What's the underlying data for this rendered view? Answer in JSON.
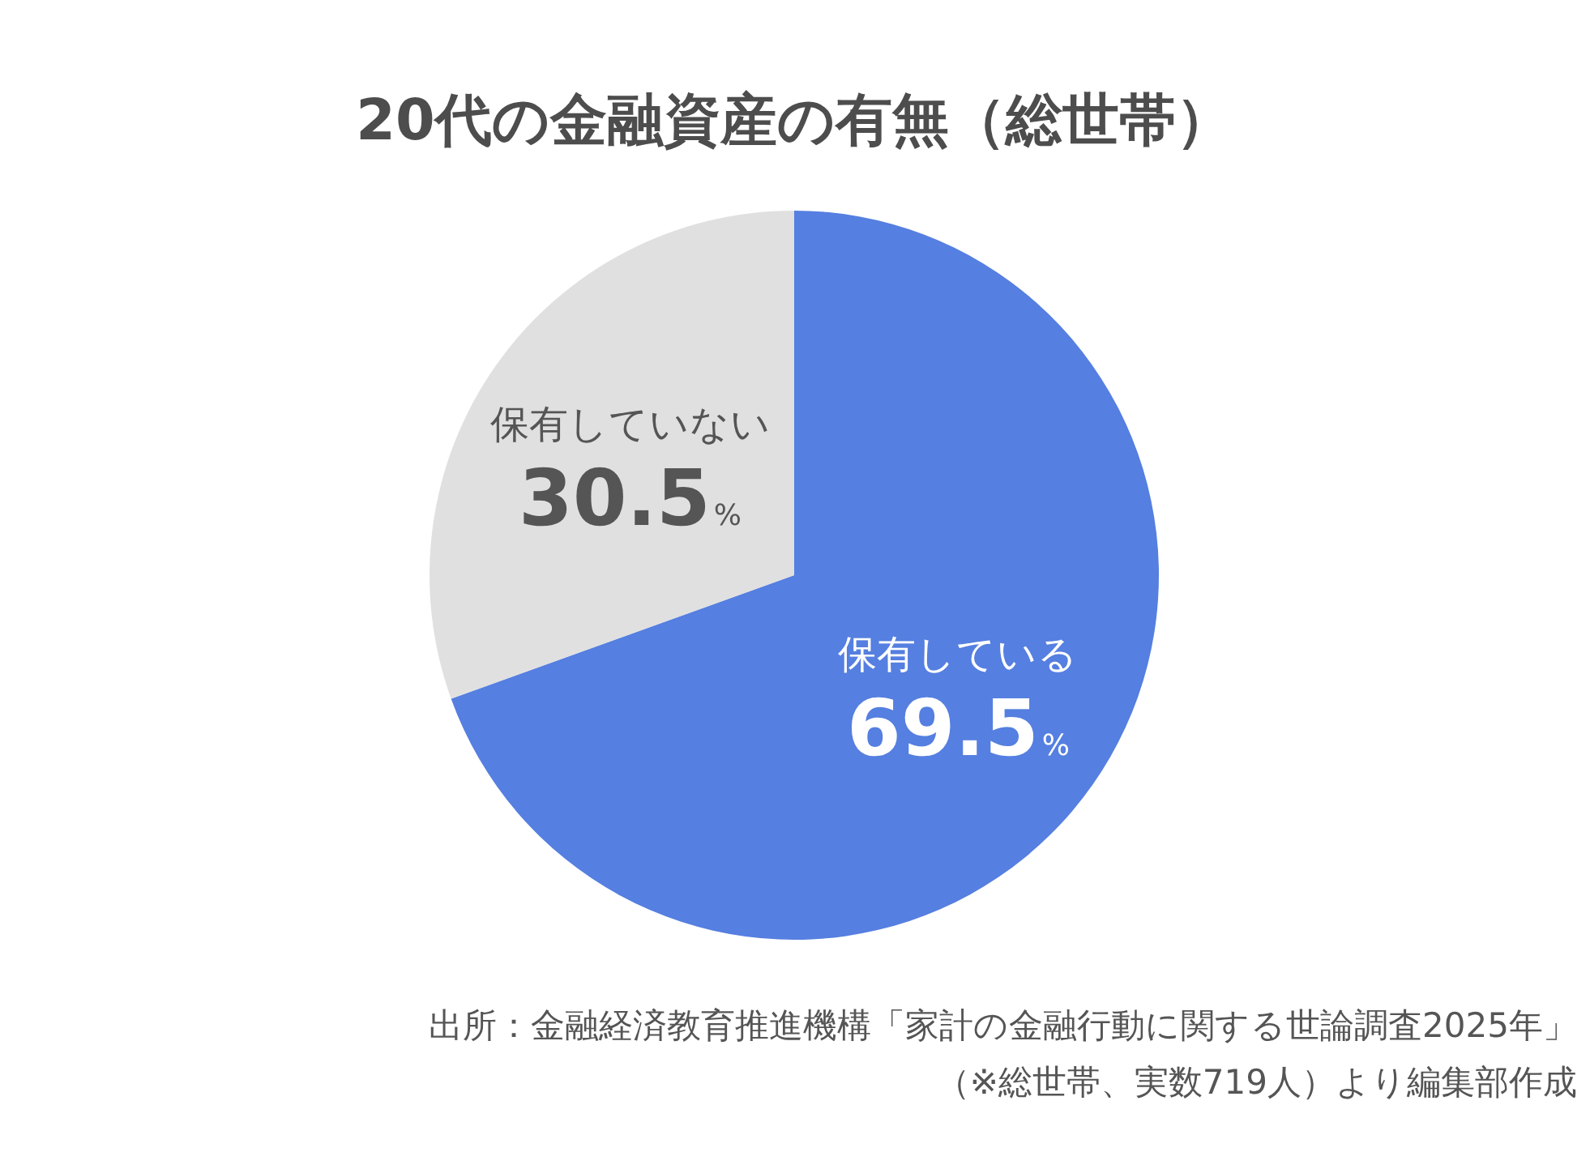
{
  "chart_data": {
    "type": "pie",
    "title": "20代の金融資産の有無（総世帯）",
    "categories": [
      "保有している",
      "保有していない"
    ],
    "values": [
      69.5,
      30.5
    ],
    "colors": [
      "#557fe0",
      "#e0e0e0"
    ],
    "value_labels": [
      "69.5%",
      "30.5%"
    ],
    "annotations": [
      "出所：金融経済教育推進機構「家計の金融行動に関する世論調査2025年」",
      "（※総世帯、実数719人）より編集部作成"
    ]
  }
}
